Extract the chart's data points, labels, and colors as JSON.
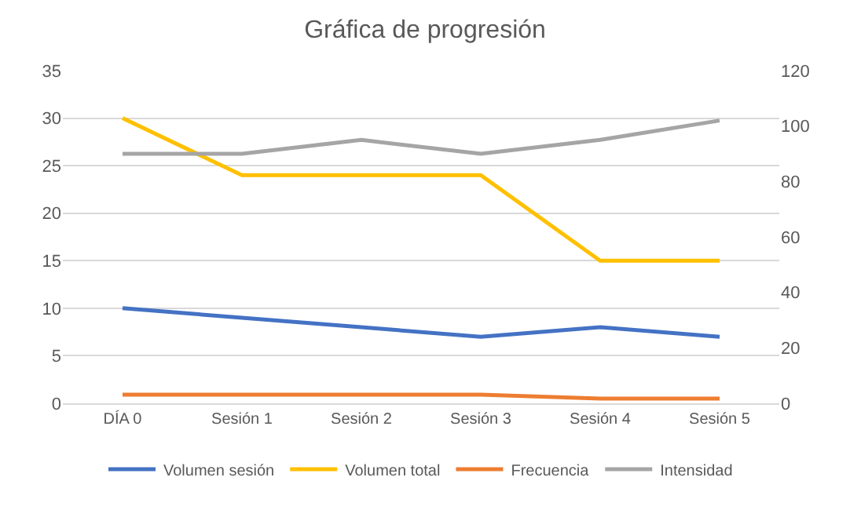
{
  "chart_data": {
    "type": "line",
    "title": "Gráfica de progresión",
    "categories": [
      "DÍA 0",
      "Sesión 1",
      "Sesión 2",
      "Sesión 3",
      "Sesión 4",
      "Sesión 5"
    ],
    "series": [
      {
        "name": "Volumen sesión",
        "color": "#4472c4",
        "values": [
          10,
          9,
          8,
          7,
          8,
          7
        ]
      },
      {
        "name": "Volumen total",
        "color": "#ffc000",
        "values": [
          30,
          24,
          24,
          24,
          15,
          15
        ]
      },
      {
        "name": "Frecuencia",
        "color": "#ed7d31",
        "values": [
          0.9,
          0.9,
          0.9,
          0.9,
          0.5,
          0.5
        ]
      },
      {
        "name": "Intensidad",
        "color": "#a5a5a5",
        "values": [
          90,
          90,
          95,
          90,
          95,
          102
        ],
        "axis": "y2"
      }
    ],
    "ylim": [
      0,
      35
    ],
    "yticks": [
      0,
      5,
      10,
      15,
      20,
      25,
      30,
      35
    ],
    "y2lim": [
      0,
      120
    ],
    "y2ticks": [
      0,
      20,
      40,
      60,
      80,
      100,
      120
    ],
    "grid": "y",
    "legend": "bottom",
    "marker": "none",
    "line_style": "solid"
  }
}
